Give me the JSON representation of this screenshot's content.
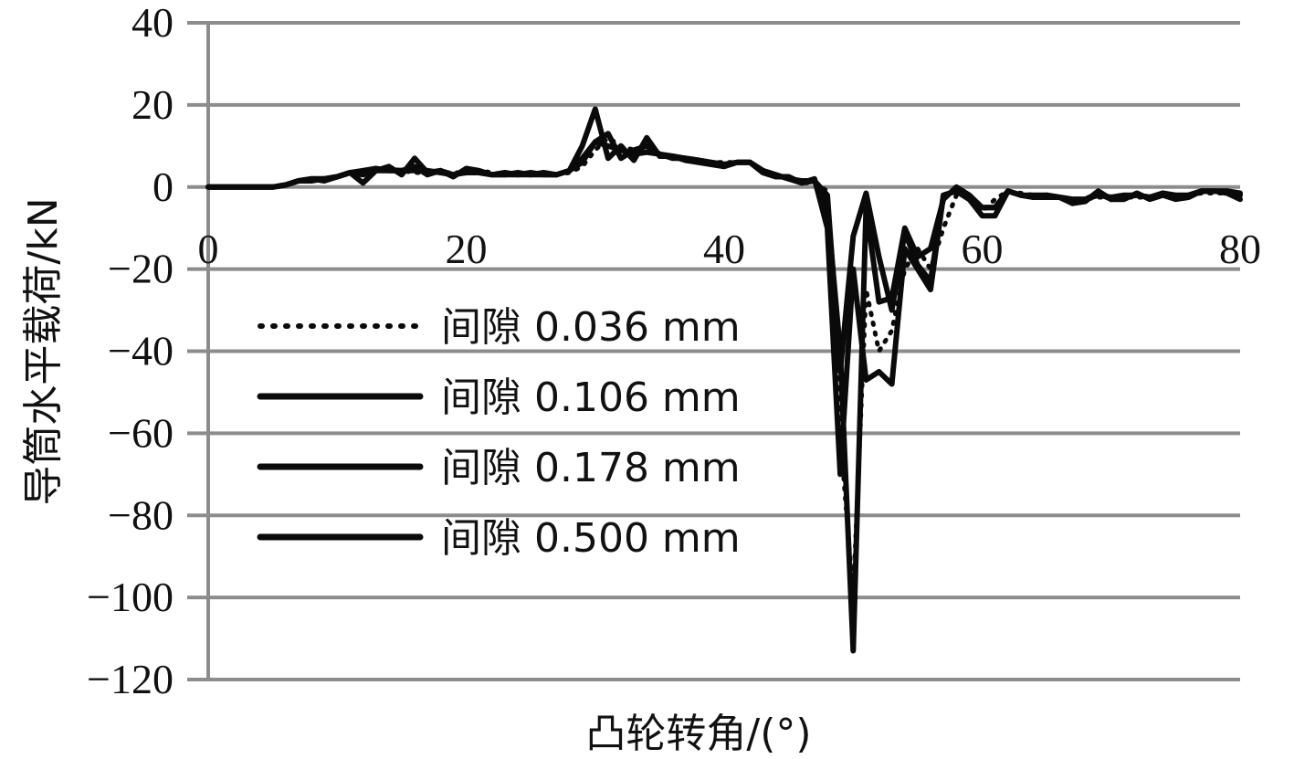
{
  "chart_data": {
    "type": "line",
    "xlabel": "凸轮转角/(°)",
    "ylabel": "导筒水平载荷/kN",
    "xlim": [
      0,
      80
    ],
    "ylim": [
      -120,
      40
    ],
    "x_ticks": [
      0,
      20,
      40,
      60,
      80
    ],
    "y_ticks": [
      40,
      20,
      0,
      -20,
      -40,
      -60,
      -80,
      -100,
      -120
    ],
    "x_tick_labels": [
      "0",
      "20",
      "40",
      "60",
      "80"
    ],
    "y_tick_labels": [
      "40",
      "20",
      "0",
      "−20",
      "−40",
      "−60",
      "−80",
      "−100",
      "−120"
    ],
    "grid": "horizontal",
    "legend_position": "left-center",
    "series": [
      {
        "name": "间隙 0.036 mm",
        "style": "dotted",
        "x": [
          0,
          2,
          4,
          5,
          6,
          7,
          8,
          9,
          10,
          11,
          12,
          13,
          14,
          15,
          16,
          17,
          18,
          19,
          20,
          21,
          22,
          23,
          24,
          25,
          26,
          27,
          28,
          29,
          30,
          31,
          32,
          33,
          34,
          35,
          36,
          37,
          38,
          39,
          40,
          41,
          42,
          43,
          44,
          45,
          46,
          47,
          48,
          49,
          50,
          51,
          52,
          53,
          54,
          55,
          56,
          57,
          58,
          59,
          60,
          61,
          62,
          63,
          64,
          65,
          66,
          67,
          68,
          69,
          70,
          71,
          72,
          73,
          74,
          75,
          76,
          77,
          78,
          79,
          80
        ],
        "y": [
          0,
          0,
          0,
          0,
          0.5,
          1.5,
          2,
          2,
          2.5,
          3.5,
          4,
          4.5,
          4.5,
          4,
          3.5,
          3.5,
          3.5,
          3.5,
          3.5,
          4,
          3.5,
          3,
          3,
          3,
          3,
          3,
          3.5,
          5,
          9,
          12,
          10,
          9,
          8.5,
          8,
          7.5,
          7,
          6.5,
          6,
          6,
          6,
          6,
          4,
          3,
          2,
          1,
          1,
          -1,
          -60,
          -100,
          -25,
          -40,
          -35,
          -20,
          -15,
          -20,
          -10,
          -2,
          -2,
          -6,
          -3,
          -1,
          -1.5,
          -2,
          -2.5,
          -2.5,
          -3,
          -3,
          -2.5,
          -2.5,
          -2.5,
          -2.5,
          -2.5,
          -2,
          -2,
          -2,
          -1.5,
          -1.5,
          -1.5,
          -1.5
        ]
      },
      {
        "name": "间隙 0.106 mm",
        "style": "solid",
        "x": [
          0,
          2,
          4,
          5,
          6,
          7,
          8,
          9,
          10,
          11,
          12,
          13,
          14,
          15,
          16,
          17,
          18,
          19,
          20,
          21,
          22,
          23,
          24,
          25,
          26,
          27,
          28,
          29,
          30,
          31,
          32,
          33,
          34,
          35,
          36,
          37,
          38,
          39,
          40,
          41,
          42,
          43,
          44,
          45,
          46,
          47,
          48,
          49,
          50,
          51,
          52,
          53,
          54,
          55,
          56,
          57,
          58,
          59,
          60,
          61,
          62,
          63,
          64,
          65,
          66,
          67,
          68,
          69,
          70,
          71,
          72,
          73,
          74,
          75,
          76,
          77,
          78,
          79,
          80
        ],
        "y": [
          0,
          0,
          0,
          0,
          0.5,
          1.5,
          1.5,
          2,
          2.5,
          3.5,
          1,
          4,
          5,
          3,
          7,
          3.5,
          4,
          2.5,
          4.5,
          4,
          3,
          3.5,
          3,
          3.5,
          3,
          3,
          4,
          10,
          19,
          7,
          10,
          6.5,
          12,
          7.5,
          7.5,
          6.5,
          6,
          5.5,
          5,
          6,
          6,
          3.5,
          2.5,
          2.5,
          1,
          2,
          -10,
          -70,
          -20,
          -47,
          -45,
          -48,
          -15,
          -20,
          -25,
          -2,
          -1,
          -3,
          -7,
          -7,
          -1,
          -2,
          -2.5,
          -2,
          -2.5,
          -4,
          -3.5,
          -1,
          -3,
          -3,
          -1.5,
          -3,
          -2,
          -3,
          -2.5,
          -1,
          -1,
          -1.5,
          -3
        ]
      },
      {
        "name": "间隙 0.178 mm",
        "style": "solid",
        "x": [
          0,
          2,
          4,
          5,
          6,
          7,
          8,
          9,
          10,
          11,
          12,
          13,
          14,
          15,
          16,
          17,
          18,
          19,
          20,
          21,
          22,
          23,
          24,
          25,
          26,
          27,
          28,
          29,
          30,
          31,
          32,
          33,
          34,
          35,
          36,
          37,
          38,
          39,
          40,
          41,
          42,
          43,
          44,
          45,
          46,
          47,
          48,
          49,
          50,
          51,
          52,
          53,
          54,
          55,
          56,
          57,
          58,
          59,
          60,
          61,
          62,
          63,
          64,
          65,
          66,
          67,
          68,
          69,
          70,
          71,
          72,
          73,
          74,
          75,
          76,
          77,
          78,
          79,
          80
        ],
        "y": [
          0,
          0,
          0,
          0,
          0.5,
          1.5,
          2,
          1.5,
          2.5,
          3.5,
          3,
          4,
          4,
          4,
          5,
          3,
          4,
          3,
          4,
          3.5,
          3,
          3,
          3.5,
          3,
          3.5,
          3,
          4,
          6,
          11,
          13,
          7,
          9,
          10,
          8,
          7,
          7,
          6.5,
          6,
          5.5,
          6,
          6,
          4,
          3,
          2,
          1.5,
          1.5,
          -5,
          -40,
          -113,
          -5,
          -28,
          -27,
          -10,
          -17,
          -15,
          -3,
          0,
          -2,
          -5,
          -5,
          -1,
          -2,
          -2.5,
          -2.5,
          -2.5,
          -3,
          -3,
          -1.5,
          -3,
          -2.5,
          -2,
          -2.5,
          -1.5,
          -2.5,
          -2,
          -1,
          -1,
          -1,
          -2
        ]
      },
      {
        "name": "间隙 0.500 mm",
        "style": "solid",
        "x": [
          0,
          2,
          4,
          5,
          6,
          7,
          8,
          9,
          10,
          11,
          12,
          13,
          14,
          15,
          16,
          17,
          18,
          19,
          20,
          21,
          22,
          23,
          24,
          25,
          26,
          27,
          28,
          29,
          30,
          31,
          32,
          33,
          34,
          35,
          36,
          37,
          38,
          39,
          40,
          41,
          42,
          43,
          44,
          45,
          46,
          47,
          48,
          49,
          50,
          51,
          52,
          53,
          54,
          55,
          56,
          57,
          58,
          59,
          60,
          61,
          62,
          63,
          64,
          65,
          66,
          67,
          68,
          69,
          70,
          71,
          72,
          73,
          74,
          75,
          76,
          77,
          78,
          79,
          80
        ],
        "y": [
          0,
          0,
          0,
          0,
          0.5,
          1.5,
          2,
          2,
          2.5,
          3.5,
          4,
          4.5,
          4,
          4,
          4,
          4,
          3.5,
          3,
          3.5,
          3.5,
          3,
          3,
          3,
          3,
          3,
          3,
          4,
          7,
          11,
          10,
          9,
          8,
          8.5,
          8,
          7.5,
          7,
          6.5,
          6,
          5.5,
          6,
          6,
          4,
          3,
          2,
          1,
          1.5,
          -2,
          -45,
          -12,
          -1.5,
          -17,
          -30,
          -11,
          -19,
          -23,
          -2,
          -1,
          -3,
          -5,
          -5,
          -1,
          -2,
          -2,
          -2,
          -2.5,
          -3,
          -3,
          -2,
          -2.5,
          -2,
          -2,
          -2.5,
          -1.5,
          -2,
          -2,
          -1,
          -1,
          -1,
          -1.5
        ]
      }
    ]
  }
}
